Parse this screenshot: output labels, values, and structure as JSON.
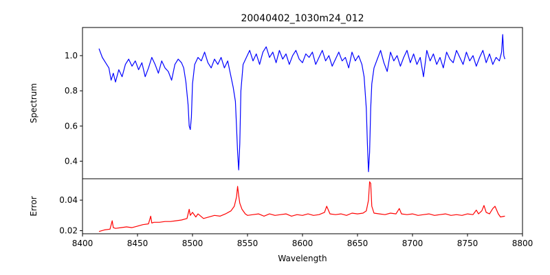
{
  "chart_data": [
    {
      "type": "line",
      "title": "20040402_1030m24_012",
      "xlabel": "",
      "ylabel": "Spectrum",
      "xlim": [
        8400,
        8800
      ],
      "ylim": [
        0.3,
        1.16
      ],
      "yticks": [
        0.4,
        0.6,
        0.8,
        1.0
      ],
      "yticklabels": [
        "0.4",
        "0.6",
        "0.8",
        "1.0"
      ],
      "grid": false,
      "color": "#0000ff",
      "series": [
        {
          "x": [
            8415,
            8418,
            8421,
            8424,
            8426,
            8428,
            8430,
            8433,
            8436,
            8439,
            8442,
            8445,
            8448,
            8451,
            8454,
            8457,
            8460,
            8463,
            8466,
            8469,
            8472,
            8475,
            8478,
            8481,
            8484,
            8487,
            8490,
            8492,
            8494,
            8496,
            8497,
            8498,
            8499,
            8500,
            8502,
            8505,
            8508,
            8511,
            8514,
            8517,
            8520,
            8523,
            8526,
            8529,
            8532,
            8535,
            8537,
            8539,
            8540,
            8541,
            8542,
            8543,
            8544,
            8546,
            8549,
            8552,
            8555,
            8558,
            8561,
            8564,
            8567,
            8570,
            8573,
            8576,
            8579,
            8582,
            8585,
            8588,
            8591,
            8594,
            8597,
            8600,
            8603,
            8606,
            8609,
            8612,
            8615,
            8618,
            8621,
            8624,
            8627,
            8630,
            8633,
            8636,
            8639,
            8642,
            8645,
            8648,
            8651,
            8654,
            8656,
            8658,
            8659,
            8660,
            8661,
            8662,
            8663,
            8665,
            8668,
            8671,
            8674,
            8677,
            8680,
            8683,
            8686,
            8689,
            8692,
            8695,
            8698,
            8701,
            8704,
            8707,
            8710,
            8713,
            8716,
            8719,
            8722,
            8725,
            8728,
            8731,
            8734,
            8737,
            8740,
            8743,
            8746,
            8749,
            8752,
            8755,
            8758,
            8761,
            8764,
            8767,
            8770,
            8773,
            8776,
            8779,
            8781,
            8782,
            8783,
            8784
          ],
          "y": [
            1.04,
            0.99,
            0.96,
            0.93,
            0.86,
            0.9,
            0.85,
            0.92,
            0.88,
            0.95,
            0.98,
            0.94,
            0.97,
            0.92,
            0.96,
            0.88,
            0.93,
            0.99,
            0.95,
            0.9,
            0.97,
            0.93,
            0.91,
            0.86,
            0.95,
            0.98,
            0.96,
            0.93,
            0.85,
            0.72,
            0.6,
            0.58,
            0.65,
            0.84,
            0.95,
            0.99,
            0.97,
            1.02,
            0.96,
            0.93,
            0.98,
            0.95,
            0.99,
            0.93,
            0.97,
            0.88,
            0.82,
            0.74,
            0.6,
            0.45,
            0.35,
            0.5,
            0.8,
            0.95,
            0.99,
            1.03,
            0.97,
            1.01,
            0.95,
            1.02,
            1.05,
            0.99,
            1.02,
            0.96,
            1.03,
            0.98,
            1.01,
            0.95,
            1.0,
            1.03,
            0.98,
            0.96,
            1.01,
            0.99,
            1.02,
            0.95,
            0.99,
            1.03,
            0.97,
            1.0,
            0.94,
            0.98,
            1.02,
            0.97,
            0.99,
            0.93,
            1.02,
            0.97,
            1.0,
            0.95,
            0.88,
            0.7,
            0.5,
            0.34,
            0.45,
            0.7,
            0.84,
            0.93,
            0.98,
            1.03,
            0.96,
            0.91,
            1.02,
            0.97,
            1.0,
            0.94,
            0.99,
            1.03,
            0.96,
            1.01,
            0.95,
            0.99,
            0.88,
            1.03,
            0.97,
            1.01,
            0.95,
            0.99,
            0.93,
            1.02,
            0.98,
            0.96,
            1.03,
            0.99,
            0.95,
            1.02,
            0.97,
            1.0,
            0.94,
            0.99,
            1.03,
            0.96,
            1.01,
            0.95,
            0.99,
            0.97,
            1.02,
            1.12,
            1.0,
            0.98
          ]
        }
      ]
    },
    {
      "type": "line",
      "title": "",
      "xlabel": "Wavelength",
      "ylabel": "Error",
      "xlim": [
        8400,
        8800
      ],
      "ylim": [
        0.018,
        0.054
      ],
      "xticks": [
        8400,
        8450,
        8500,
        8550,
        8600,
        8650,
        8700,
        8750,
        8800
      ],
      "xticklabels": [
        "8400",
        "8450",
        "8500",
        "8550",
        "8600",
        "8650",
        "8700",
        "8750",
        "8800"
      ],
      "yticks": [
        0.02,
        0.04
      ],
      "yticklabels": [
        "0.02",
        "0.04"
      ],
      "grid": false,
      "color": "#ff0000",
      "series": [
        {
          "x": [
            8415,
            8420,
            8425,
            8427,
            8428,
            8430,
            8435,
            8440,
            8445,
            8450,
            8455,
            8460,
            8462,
            8463,
            8465,
            8470,
            8475,
            8480,
            8485,
            8490,
            8495,
            8497,
            8498,
            8500,
            8503,
            8505,
            8510,
            8515,
            8520,
            8525,
            8530,
            8535,
            8538,
            8540,
            8541,
            8542,
            8543,
            8545,
            8548,
            8550,
            8555,
            8560,
            8565,
            8570,
            8575,
            8580,
            8585,
            8590,
            8595,
            8600,
            8605,
            8610,
            8615,
            8620,
            8622,
            8625,
            8630,
            8635,
            8640,
            8645,
            8650,
            8655,
            8658,
            8660,
            8661,
            8662,
            8663,
            8665,
            8670,
            8675,
            8680,
            8685,
            8688,
            8690,
            8695,
            8700,
            8705,
            8710,
            8715,
            8720,
            8725,
            8730,
            8735,
            8740,
            8745,
            8750,
            8755,
            8758,
            8760,
            8763,
            8765,
            8767,
            8770,
            8773,
            8775,
            8778,
            8780,
            8784
          ],
          "y": [
            0.0195,
            0.0205,
            0.021,
            0.0265,
            0.022,
            0.0215,
            0.022,
            0.0225,
            0.022,
            0.023,
            0.024,
            0.0245,
            0.0295,
            0.025,
            0.0255,
            0.0255,
            0.026,
            0.026,
            0.0265,
            0.027,
            0.028,
            0.034,
            0.03,
            0.032,
            0.029,
            0.031,
            0.028,
            0.029,
            0.03,
            0.0295,
            0.031,
            0.033,
            0.036,
            0.042,
            0.049,
            0.043,
            0.038,
            0.034,
            0.031,
            0.03,
            0.0305,
            0.031,
            0.0295,
            0.031,
            0.03,
            0.0305,
            0.031,
            0.0295,
            0.0305,
            0.03,
            0.031,
            0.03,
            0.0305,
            0.032,
            0.036,
            0.031,
            0.0305,
            0.031,
            0.03,
            0.0315,
            0.031,
            0.0315,
            0.033,
            0.04,
            0.052,
            0.051,
            0.036,
            0.0315,
            0.031,
            0.0305,
            0.0315,
            0.031,
            0.0345,
            0.031,
            0.0305,
            0.031,
            0.03,
            0.0305,
            0.031,
            0.03,
            0.0305,
            0.031,
            0.03,
            0.0305,
            0.03,
            0.031,
            0.0305,
            0.0335,
            0.031,
            0.033,
            0.0365,
            0.032,
            0.031,
            0.0345,
            0.036,
            0.031,
            0.029,
            0.0295
          ]
        }
      ]
    }
  ]
}
